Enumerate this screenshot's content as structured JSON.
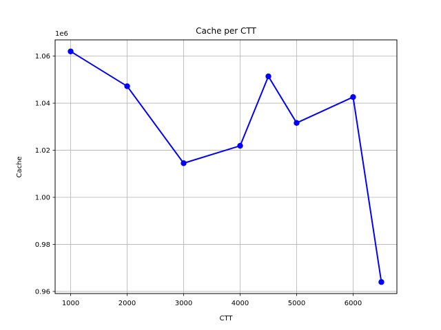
{
  "chart_data": {
    "type": "line",
    "title": "Cache per CTT",
    "xlabel": "CTT",
    "ylabel": "Cache",
    "y_offset_label": "1e6",
    "x": [
      1000,
      2000,
      3000,
      4000,
      4500,
      5000,
      6000,
      6500
    ],
    "series": [
      {
        "values": [
          1062000,
          1047200,
          1014500,
          1021900,
          1051400,
          1031600,
          1042600,
          964000
        ],
        "color": "#0000ff",
        "marker": "circle"
      }
    ],
    "xticks": [
      1000,
      2000,
      3000,
      4000,
      5000,
      6000
    ],
    "xtick_labels": [
      "1000",
      "2000",
      "3000",
      "4000",
      "5000",
      "6000"
    ],
    "yticks": [
      960000,
      980000,
      1000000,
      1020000,
      1040000,
      1060000
    ],
    "ytick_labels": [
      "0.96",
      "0.98",
      "1.00",
      "1.02",
      "1.04",
      "1.06"
    ],
    "xlim": [
      725,
      6775
    ],
    "ylim": [
      959100,
      1066900
    ],
    "grid": true
  }
}
